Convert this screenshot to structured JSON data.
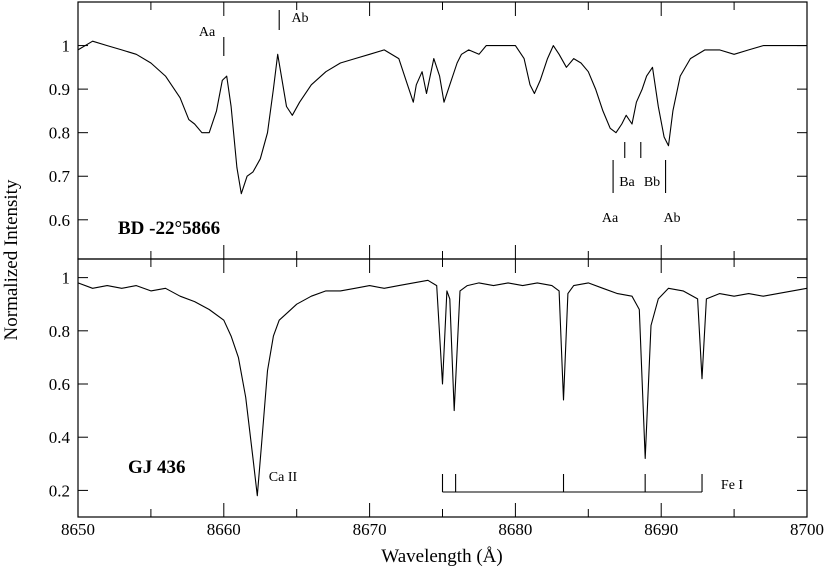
{
  "chart_data": {
    "type": "line",
    "xlabel": "Wavelength (Å)",
    "ylabel": "Normalized Intensity",
    "xlim": [
      8650,
      8700
    ],
    "x_ticks": [
      8650,
      8660,
      8670,
      8680,
      8690,
      8700
    ],
    "grid": false,
    "panels": [
      {
        "id": "top",
        "title": "BD -22°5866",
        "ylim": [
          0.51,
          1.1
        ],
        "y_ticks": [
          0.6,
          0.7,
          0.8,
          0.9,
          1
        ],
        "y_tick_labels": [
          "0.6",
          "0.7",
          "0.8",
          "0.9",
          "1"
        ],
        "annotations": [
          "Aa",
          "Ab",
          "Ba",
          "Bb",
          "Aa",
          "Ab"
        ],
        "line_markers": [
          8660.0,
          8663.8,
          8686.7,
          8687.5,
          8688.6,
          8690.3
        ],
        "series": [
          {
            "x": [
              8650,
              8651,
              8652,
              8653,
              8654,
              8655,
              8656,
              8657,
              8657.6,
              8658,
              8658.5,
              8659,
              8659.5,
              8659.9,
              8660.2,
              8660.5,
              8660.9,
              8661.2,
              8661.6,
              8662,
              8662.5,
              8663,
              8663.4,
              8663.7,
              8664,
              8664.3,
              8664.7,
              8665.2,
              8666,
              8667,
              8668,
              8669,
              8670,
              8671,
              8672,
              8672.6,
              8673,
              8673.2,
              8673.6,
              8673.9,
              8674.4,
              8674.8,
              8675.1,
              8675.5,
              8676,
              8676.3,
              8676.8,
              8677.5,
              8678,
              8679,
              8680,
              8680.6,
              8681,
              8681.3,
              8681.7,
              8682.2,
              8682.6,
              8683,
              8683.5,
              8684,
              8684.5,
              8685,
              8685.5,
              8686,
              8686.5,
              8686.9,
              8687.3,
              8687.6,
              8688,
              8688.3,
              8688.7,
              8689,
              8689.4,
              8689.8,
              8690.2,
              8690.5,
              8690.8,
              8691.3,
              8692,
              8693,
              8694,
              8695,
              8696,
              8697,
              8698,
              8699,
              8700
            ],
            "y": [
              0.99,
              1.01,
              1.0,
              0.99,
              0.98,
              0.96,
              0.93,
              0.88,
              0.83,
              0.82,
              0.8,
              0.8,
              0.85,
              0.92,
              0.93,
              0.86,
              0.72,
              0.66,
              0.7,
              0.71,
              0.74,
              0.8,
              0.9,
              0.98,
              0.92,
              0.86,
              0.84,
              0.87,
              0.91,
              0.94,
              0.96,
              0.97,
              0.98,
              0.99,
              0.97,
              0.91,
              0.87,
              0.91,
              0.94,
              0.89,
              0.97,
              0.93,
              0.87,
              0.91,
              0.96,
              0.98,
              0.99,
              0.98,
              1.0,
              1.0,
              1.0,
              0.97,
              0.91,
              0.89,
              0.92,
              0.97,
              1.0,
              0.98,
              0.95,
              0.97,
              0.96,
              0.94,
              0.9,
              0.85,
              0.81,
              0.8,
              0.82,
              0.84,
              0.82,
              0.87,
              0.9,
              0.93,
              0.95,
              0.86,
              0.79,
              0.77,
              0.85,
              0.93,
              0.97,
              0.99,
              0.99,
              0.98,
              0.99,
              1.0,
              1.0,
              1.0,
              1.0
            ]
          }
        ]
      },
      {
        "id": "bottom",
        "title": "GJ 436",
        "ylim": [
          0.1,
          1.07
        ],
        "y_ticks": [
          0.2,
          0.4,
          0.6,
          0.8,
          1
        ],
        "y_tick_labels": [
          "0.2",
          "0.4",
          "0.6",
          "0.8",
          "1"
        ],
        "annotations": [
          "Ca II",
          "Fe I"
        ],
        "line_markers": [
          8675.0,
          8675.9,
          8683.3,
          8688.9,
          8692.8
        ],
        "series": [
          {
            "x": [
              8650,
              8651,
              8652,
              8653,
              8654,
              8655,
              8656,
              8657,
              8658,
              8659,
              8660,
              8660.5,
              8661,
              8661.5,
              8662,
              8662.3,
              8662.6,
              8663,
              8663.4,
              8663.8,
              8664.4,
              8665,
              8666,
              8667,
              8668,
              8669,
              8670,
              8671,
              8672,
              8673,
              8674,
              8674.6,
              8675,
              8675.3,
              8675.5,
              8675.8,
              8676.2,
              8676.7,
              8677.5,
              8678.5,
              8679.5,
              8680.5,
              8681.5,
              8682.5,
              8683,
              8683.3,
              8683.6,
              8684,
              8685,
              8686,
              8687,
              8688,
              8688.5,
              8688.9,
              8689.3,
              8689.8,
              8690.5,
              8691.5,
              8692.5,
              8692.8,
              8693.1,
              8694,
              8695,
              8696,
              8697,
              8698,
              8699,
              8700
            ],
            "y": [
              0.98,
              0.96,
              0.97,
              0.96,
              0.97,
              0.95,
              0.96,
              0.93,
              0.91,
              0.88,
              0.84,
              0.78,
              0.7,
              0.55,
              0.32,
              0.18,
              0.38,
              0.65,
              0.78,
              0.84,
              0.87,
              0.9,
              0.93,
              0.95,
              0.95,
              0.96,
              0.97,
              0.96,
              0.97,
              0.98,
              0.99,
              0.97,
              0.6,
              0.95,
              0.92,
              0.5,
              0.95,
              0.97,
              0.98,
              0.97,
              0.98,
              0.97,
              0.98,
              0.97,
              0.95,
              0.54,
              0.94,
              0.97,
              0.98,
              0.96,
              0.94,
              0.93,
              0.88,
              0.32,
              0.82,
              0.92,
              0.96,
              0.95,
              0.92,
              0.62,
              0.92,
              0.94,
              0.93,
              0.94,
              0.93,
              0.94,
              0.95,
              0.96
            ]
          }
        ]
      }
    ]
  }
}
